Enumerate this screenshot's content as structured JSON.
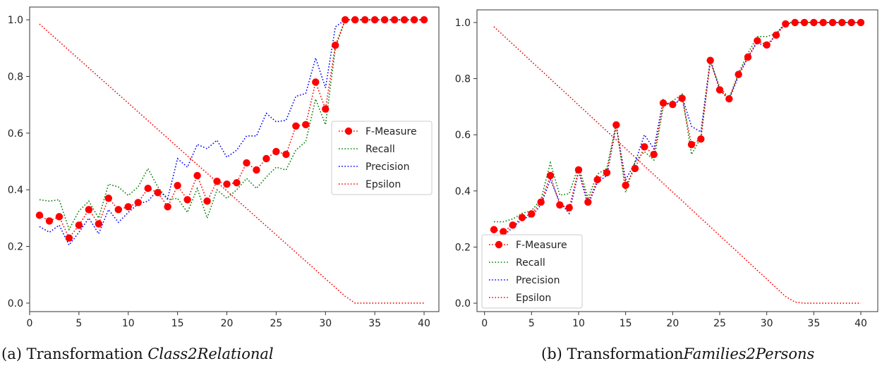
{
  "chart_data": [
    {
      "type": "line",
      "xlim": [
        0,
        41.5
      ],
      "ylim": [
        -0.03,
        1.045
      ],
      "x_ticks": [
        0,
        5,
        10,
        15,
        20,
        25,
        30,
        35,
        40
      ],
      "y_ticks": [
        0.0,
        0.2,
        0.4,
        0.6,
        0.8,
        1.0
      ],
      "legend_position": "center-right",
      "grid": false,
      "x": [
        1,
        2,
        3,
        4,
        5,
        6,
        7,
        8,
        9,
        10,
        11,
        12,
        13,
        14,
        15,
        16,
        17,
        18,
        19,
        20,
        21,
        22,
        23,
        24,
        25,
        26,
        27,
        28,
        29,
        30,
        31,
        32,
        33,
        34,
        35,
        36,
        37,
        38,
        39,
        40
      ],
      "series": [
        {
          "name": "F-Measure",
          "color": "#ff0000",
          "style": "dotted-markers",
          "values": [
            0.31,
            0.29,
            0.305,
            0.23,
            0.275,
            0.33,
            0.28,
            0.37,
            0.33,
            0.34,
            0.355,
            0.405,
            0.39,
            0.34,
            0.415,
            0.365,
            0.45,
            0.36,
            0.43,
            0.42,
            0.425,
            0.495,
            0.47,
            0.51,
            0.535,
            0.525,
            0.625,
            0.63,
            0.78,
            0.685,
            0.91,
            1.0,
            1.0,
            1.0,
            1.0,
            1.0,
            1.0,
            1.0,
            1.0,
            1.0
          ]
        },
        {
          "name": "Recall",
          "color": "#008000",
          "style": "dotted",
          "values": [
            0.365,
            0.36,
            0.365,
            0.26,
            0.325,
            0.36,
            0.3,
            0.42,
            0.41,
            0.38,
            0.41,
            0.475,
            0.41,
            0.365,
            0.37,
            0.32,
            0.405,
            0.3,
            0.4,
            0.37,
            0.4,
            0.44,
            0.405,
            0.445,
            0.48,
            0.47,
            0.54,
            0.57,
            0.72,
            0.63,
            0.9,
            1.0,
            1.0,
            1.0,
            1.0,
            1.0,
            1.0,
            1.0,
            1.0,
            1.0
          ]
        },
        {
          "name": "Precision",
          "color": "#0000ff",
          "style": "dotted",
          "values": [
            0.27,
            0.25,
            0.275,
            0.205,
            0.25,
            0.3,
            0.245,
            0.33,
            0.285,
            0.32,
            0.35,
            0.36,
            0.4,
            0.37,
            0.51,
            0.48,
            0.56,
            0.545,
            0.575,
            0.515,
            0.54,
            0.59,
            0.59,
            0.67,
            0.64,
            0.645,
            0.73,
            0.74,
            0.865,
            0.76,
            0.975,
            1.0,
            1.0,
            1.0,
            1.0,
            1.0,
            1.0,
            1.0,
            1.0,
            1.0
          ]
        },
        {
          "name": "Epsilon",
          "color": "#ff0000",
          "style": "dotted",
          "values": [
            0.985,
            0.954,
            0.923,
            0.892,
            0.861,
            0.83,
            0.799,
            0.768,
            0.737,
            0.706,
            0.675,
            0.644,
            0.613,
            0.582,
            0.551,
            0.52,
            0.489,
            0.458,
            0.427,
            0.396,
            0.365,
            0.334,
            0.303,
            0.272,
            0.241,
            0.21,
            0.179,
            0.148,
            0.117,
            0.086,
            0.055,
            0.024,
            0.0,
            0.0,
            0.0,
            0.0,
            0.0,
            0.0,
            0.0,
            0.0
          ]
        }
      ]
    },
    {
      "type": "line",
      "xlim": [
        -0.8,
        41.8
      ],
      "ylim": [
        -0.03,
        1.045
      ],
      "x_ticks": [
        0,
        5,
        10,
        15,
        20,
        25,
        30,
        35,
        40
      ],
      "y_ticks": [
        0.0,
        0.2,
        0.4,
        0.6,
        0.8,
        1.0
      ],
      "legend_position": "lower-left",
      "grid": false,
      "x": [
        1,
        2,
        3,
        4,
        5,
        6,
        7,
        8,
        9,
        10,
        11,
        12,
        13,
        14,
        15,
        16,
        17,
        18,
        19,
        20,
        21,
        22,
        23,
        24,
        25,
        26,
        27,
        28,
        29,
        30,
        31,
        32,
        33,
        34,
        35,
        36,
        37,
        38,
        39,
        40
      ],
      "series": [
        {
          "name": "F-Measure",
          "color": "#ff0000",
          "style": "dotted-markers",
          "values": [
            0.262,
            0.255,
            0.278,
            0.305,
            0.318,
            0.36,
            0.455,
            0.35,
            0.34,
            0.475,
            0.36,
            0.44,
            0.465,
            0.635,
            0.42,
            0.48,
            0.557,
            0.53,
            0.713,
            0.708,
            0.73,
            0.565,
            0.585,
            0.865,
            0.76,
            0.728,
            0.815,
            0.877,
            0.935,
            0.92,
            0.955,
            0.995,
            1.0,
            1.0,
            1.0,
            1.0,
            1.0,
            1.0,
            1.0,
            1.0
          ]
        },
        {
          "name": "Recall",
          "color": "#008000",
          "style": "dotted",
          "values": [
            0.29,
            0.29,
            0.3,
            0.32,
            0.33,
            0.37,
            0.5,
            0.385,
            0.39,
            0.49,
            0.375,
            0.46,
            0.48,
            0.64,
            0.395,
            0.505,
            0.54,
            0.51,
            0.7,
            0.72,
            0.745,
            0.53,
            0.59,
            0.86,
            0.77,
            0.73,
            0.82,
            0.89,
            0.95,
            0.95,
            0.96,
            1.0,
            1.0,
            1.0,
            1.0,
            1.0,
            1.0,
            1.0,
            1.0,
            1.0
          ]
        },
        {
          "name": "Precision",
          "color": "#0000ff",
          "style": "dotted",
          "values": [
            0.24,
            0.24,
            0.27,
            0.3,
            0.31,
            0.35,
            0.44,
            0.36,
            0.32,
            0.47,
            0.35,
            0.43,
            0.455,
            0.63,
            0.44,
            0.5,
            0.6,
            0.55,
            0.725,
            0.7,
            0.735,
            0.63,
            0.61,
            0.87,
            0.76,
            0.725,
            0.81,
            0.875,
            0.93,
            0.91,
            0.96,
            0.995,
            1.0,
            1.0,
            1.0,
            1.0,
            1.0,
            1.0,
            1.0,
            1.0
          ]
        },
        {
          "name": "Epsilon",
          "color": "#ff0000",
          "style": "dotted",
          "values": [
            0.985,
            0.954,
            0.923,
            0.892,
            0.861,
            0.83,
            0.799,
            0.768,
            0.737,
            0.706,
            0.675,
            0.644,
            0.613,
            0.582,
            0.551,
            0.52,
            0.489,
            0.458,
            0.427,
            0.396,
            0.365,
            0.334,
            0.303,
            0.272,
            0.241,
            0.21,
            0.179,
            0.148,
            0.117,
            0.086,
            0.055,
            0.024,
            0.004,
            0.0,
            0.0,
            0.0,
            0.0,
            0.0,
            0.0,
            0.0
          ]
        }
      ]
    }
  ],
  "captions": [
    {
      "prefix": "(a) Transformation ",
      "name": "Class2Relational"
    },
    {
      "prefix": "(b) Transformation",
      "name": "Families2Persons"
    }
  ]
}
